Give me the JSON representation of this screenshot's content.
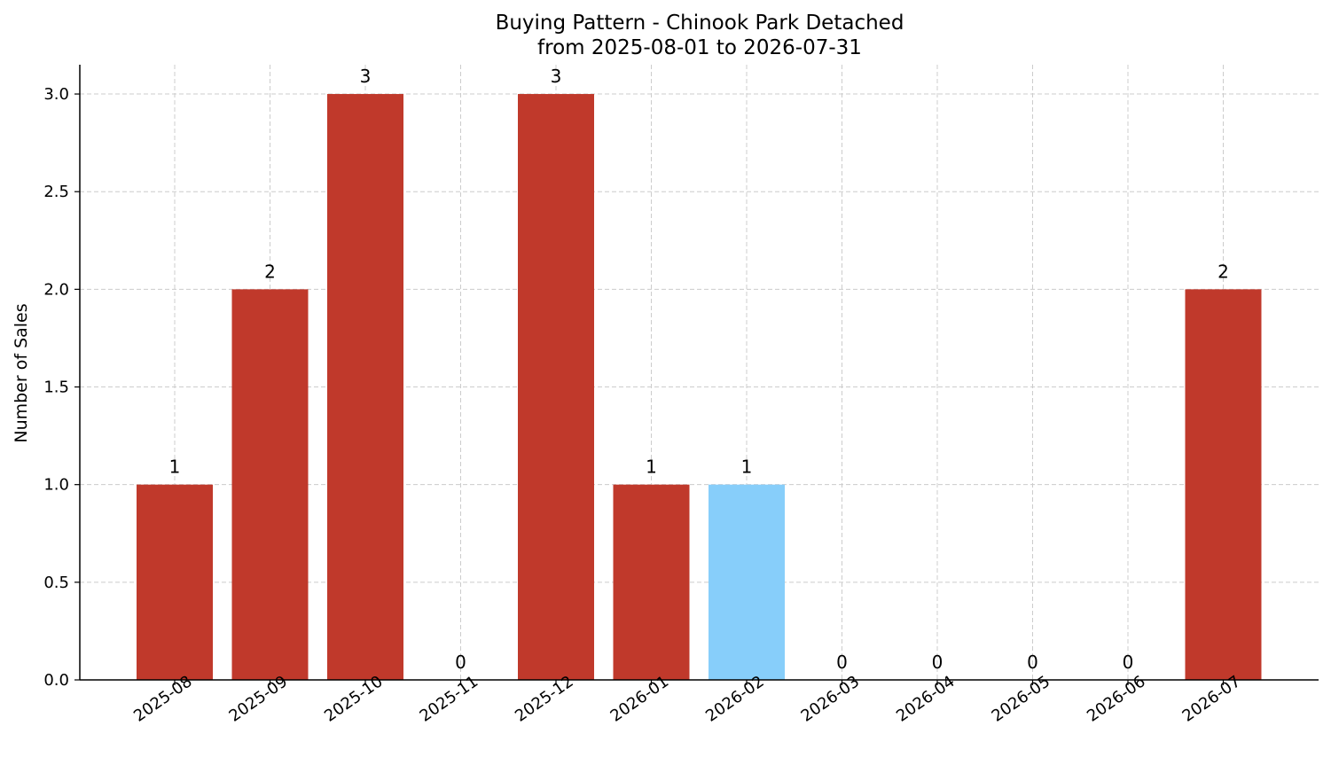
{
  "chart_data": {
    "type": "bar",
    "title": "Buying Pattern - Chinook Park Detached",
    "subtitle": "from 2025-08-01 to 2026-07-31",
    "xlabel": "",
    "ylabel": "Number of Sales",
    "categories": [
      "2025-08",
      "2025-09",
      "2025-10",
      "2025-11",
      "2025-12",
      "2026-01",
      "2026-02",
      "2026-03",
      "2026-04",
      "2026-05",
      "2026-06",
      "2026-07"
    ],
    "values": [
      1,
      2,
      3,
      0,
      3,
      1,
      1,
      0,
      0,
      0,
      0,
      2
    ],
    "bar_colors": [
      "#c0392b",
      "#c0392b",
      "#c0392b",
      "#c0392b",
      "#c0392b",
      "#c0392b",
      "#87cefa",
      "#c0392b",
      "#c0392b",
      "#c0392b",
      "#c0392b",
      "#c0392b"
    ],
    "data_labels": [
      "1",
      "2",
      "3",
      "0",
      "3",
      "1",
      "1",
      "0",
      "0",
      "0",
      "0",
      "2"
    ],
    "yticks": [
      "0.0",
      "0.5",
      "1.0",
      "1.5",
      "2.0",
      "2.5",
      "3.0"
    ],
    "ylim": [
      0,
      3.15
    ],
    "grid": true,
    "legend": "none"
  }
}
